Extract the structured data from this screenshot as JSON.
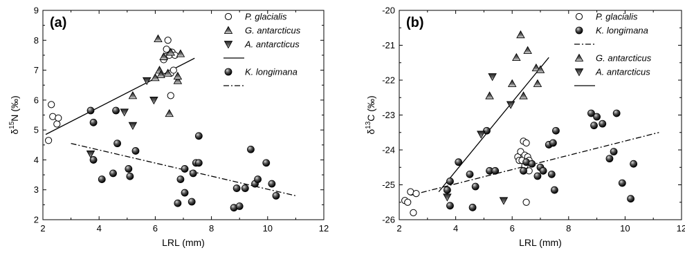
{
  "chart_data": [
    {
      "type": "scatter",
      "panel": "(a)",
      "xlabel": "LRL (mm)",
      "ylabel_parts": {
        "prefix": "δ",
        "sup": "15",
        "suffix": "N (‰)"
      },
      "xlim": [
        2,
        12
      ],
      "ylim": [
        2,
        9
      ],
      "xticks": [
        "2",
        "4",
        "6",
        "8",
        "10",
        "12"
      ],
      "yticks": [
        "2",
        "3",
        "4",
        "5",
        "6",
        "7",
        "8",
        "9"
      ],
      "legend": [
        {
          "label": "P. glacialis",
          "italic": true,
          "kind": "circle"
        },
        {
          "label": "G. antarcticus",
          "italic": true,
          "kind": "tri-up"
        },
        {
          "label": "A. antarcticus",
          "italic": true,
          "kind": "tri-down"
        },
        {
          "label": "",
          "italic": false,
          "kind": "solid-line"
        },
        {
          "label": "K. longimana",
          "italic": true,
          "kind": "sphere"
        },
        {
          "label": "",
          "italic": false,
          "kind": "dashdot-line"
        }
      ],
      "series": [
        {
          "name": "P. glacialis",
          "marker": "circle",
          "points": [
            [
              2.2,
              4.65
            ],
            [
              2.3,
              5.85
            ],
            [
              2.35,
              5.45
            ],
            [
              2.5,
              5.2
            ],
            [
              2.55,
              5.4
            ],
            [
              6.3,
              7.35
            ],
            [
              6.35,
              7.45
            ],
            [
              6.4,
              7.7
            ],
            [
              6.45,
              8.0
            ],
            [
              6.5,
              7.5
            ],
            [
              6.55,
              6.9
            ],
            [
              6.55,
              6.15
            ],
            [
              6.6,
              7.6
            ],
            [
              6.65,
              7.0
            ],
            [
              6.7,
              7.5
            ]
          ]
        },
        {
          "name": "G. antarcticus",
          "marker": "tri-up",
          "points": [
            [
              5.2,
              6.15
            ],
            [
              6.0,
              6.75
            ],
            [
              6.1,
              8.05
            ],
            [
              6.15,
              7.0
            ],
            [
              6.2,
              6.85
            ],
            [
              6.3,
              7.45
            ],
            [
              6.45,
              6.9
            ],
            [
              6.5,
              5.55
            ],
            [
              6.55,
              7.6
            ],
            [
              6.8,
              6.65
            ],
            [
              6.8,
              6.8
            ],
            [
              6.9,
              7.55
            ]
          ]
        },
        {
          "name": "A. antarcticus",
          "marker": "tri-down",
          "points": [
            [
              3.7,
              4.2
            ],
            [
              4.9,
              5.6
            ],
            [
              5.2,
              5.15
            ],
            [
              5.7,
              6.65
            ],
            [
              5.95,
              6.0
            ]
          ]
        },
        {
          "name": "K. longimana",
          "marker": "sphere",
          "points": [
            [
              3.7,
              5.65
            ],
            [
              3.8,
              5.25
            ],
            [
              3.8,
              4.0
            ],
            [
              4.1,
              3.35
            ],
            [
              4.5,
              3.55
            ],
            [
              4.6,
              5.65
            ],
            [
              4.65,
              4.55
            ],
            [
              5.05,
              3.7
            ],
            [
              5.1,
              3.45
            ],
            [
              5.3,
              4.3
            ],
            [
              6.8,
              2.55
            ],
            [
              6.9,
              3.35
            ],
            [
              7.05,
              3.7
            ],
            [
              7.05,
              2.9
            ],
            [
              7.3,
              2.6
            ],
            [
              7.35,
              3.55
            ],
            [
              7.45,
              3.9
            ],
            [
              7.55,
              4.8
            ],
            [
              7.55,
              3.9
            ],
            [
              8.8,
              2.4
            ],
            [
              8.9,
              3.05
            ],
            [
              9.0,
              2.45
            ],
            [
              9.2,
              3.05
            ],
            [
              9.4,
              4.35
            ],
            [
              9.55,
              3.2
            ],
            [
              9.65,
              3.35
            ],
            [
              9.95,
              3.9
            ],
            [
              10.15,
              3.2
            ],
            [
              10.3,
              2.8
            ]
          ]
        }
      ],
      "fits": [
        {
          "style": "solid",
          "x": [
            2.1,
            7.4
          ],
          "y": [
            4.85,
            7.4
          ]
        },
        {
          "style": "dashdot",
          "x": [
            3.0,
            11.0
          ],
          "y": [
            4.55,
            2.8
          ]
        }
      ]
    },
    {
      "type": "scatter",
      "panel": "(b)",
      "xlabel": "LRL (mm)",
      "ylabel_parts": {
        "prefix": "δ",
        "sup": "13",
        "suffix": "C (‰)"
      },
      "xlim": [
        2,
        12
      ],
      "ylim": [
        -26,
        -20
      ],
      "xticks": [
        "2",
        "4",
        "6",
        "8",
        "10",
        "12"
      ],
      "yticks": [
        "-26",
        "-25",
        "-24",
        "-23",
        "-22",
        "-21",
        "-20"
      ],
      "legend": [
        {
          "label": "P. glacialis",
          "italic": true,
          "kind": "circle"
        },
        {
          "label": "K. longimana",
          "italic": true,
          "kind": "sphere"
        },
        {
          "label": "",
          "italic": false,
          "kind": "dashdot-line"
        },
        {
          "label": "G. antarcticus",
          "italic": true,
          "kind": "tri-up"
        },
        {
          "label": "A. antarcticus",
          "italic": true,
          "kind": "tri-down"
        },
        {
          "label": "",
          "italic": false,
          "kind": "solid-line"
        }
      ],
      "series": [
        {
          "name": "P. glacialis",
          "marker": "circle",
          "points": [
            [
              2.2,
              -25.45
            ],
            [
              2.3,
              -25.5
            ],
            [
              2.4,
              -25.2
            ],
            [
              2.5,
              -25.8
            ],
            [
              2.6,
              -25.25
            ],
            [
              6.2,
              -24.2
            ],
            [
              6.25,
              -24.3
            ],
            [
              6.3,
              -24.05
            ],
            [
              6.35,
              -24.3
            ],
            [
              6.4,
              -23.75
            ],
            [
              6.45,
              -24.15
            ],
            [
              6.45,
              -24.45
            ],
            [
              6.5,
              -23.8
            ],
            [
              6.55,
              -24.2
            ],
            [
              6.6,
              -24.3
            ],
            [
              6.6,
              -24.6
            ],
            [
              6.5,
              -25.5
            ]
          ]
        },
        {
          "name": "K. longimana",
          "marker": "sphere",
          "points": [
            [
              3.7,
              -25.15
            ],
            [
              3.8,
              -24.9
            ],
            [
              3.8,
              -25.6
            ],
            [
              4.1,
              -24.35
            ],
            [
              4.5,
              -24.7
            ],
            [
              4.6,
              -25.65
            ],
            [
              4.7,
              -25.05
            ],
            [
              5.1,
              -23.45
            ],
            [
              5.2,
              -24.6
            ],
            [
              5.4,
              -24.6
            ],
            [
              6.4,
              -24.6
            ],
            [
              6.5,
              -24.35
            ],
            [
              6.7,
              -24.4
            ],
            [
              6.9,
              -24.75
            ],
            [
              7.0,
              -24.5
            ],
            [
              7.1,
              -24.6
            ],
            [
              7.3,
              -23.85
            ],
            [
              7.4,
              -24.7
            ],
            [
              7.45,
              -23.8
            ],
            [
              7.5,
              -25.15
            ],
            [
              7.55,
              -23.45
            ],
            [
              8.8,
              -22.95
            ],
            [
              8.9,
              -23.3
            ],
            [
              9.0,
              -23.05
            ],
            [
              9.2,
              -23.25
            ],
            [
              9.45,
              -24.25
            ],
            [
              9.6,
              -24.05
            ],
            [
              9.7,
              -22.95
            ],
            [
              9.9,
              -24.95
            ],
            [
              10.2,
              -25.4
            ],
            [
              10.3,
              -24.4
            ]
          ]
        },
        {
          "name": "G. antarcticus",
          "marker": "tri-up",
          "points": [
            [
              5.2,
              -22.45
            ],
            [
              6.0,
              -22.1
            ],
            [
              6.15,
              -21.35
            ],
            [
              6.3,
              -20.7
            ],
            [
              6.4,
              -22.45
            ],
            [
              6.55,
              -21.15
            ],
            [
              6.85,
              -21.65
            ],
            [
              6.9,
              -22.1
            ],
            [
              7.0,
              -21.7
            ]
          ]
        },
        {
          "name": "A. antarcticus",
          "marker": "tri-down",
          "points": [
            [
              3.7,
              -25.35
            ],
            [
              4.9,
              -23.55
            ],
            [
              5.3,
              -21.9
            ],
            [
              5.7,
              -25.45
            ],
            [
              5.95,
              -22.7
            ]
          ]
        }
      ],
      "fits": [
        {
          "style": "solid",
          "x": [
            3.4,
            7.3
          ],
          "y": [
            -25.2,
            -21.35
          ]
        },
        {
          "style": "dashdot",
          "x": [
            2.4,
            11.2
          ],
          "y": [
            -25.3,
            -23.5
          ]
        }
      ]
    }
  ]
}
